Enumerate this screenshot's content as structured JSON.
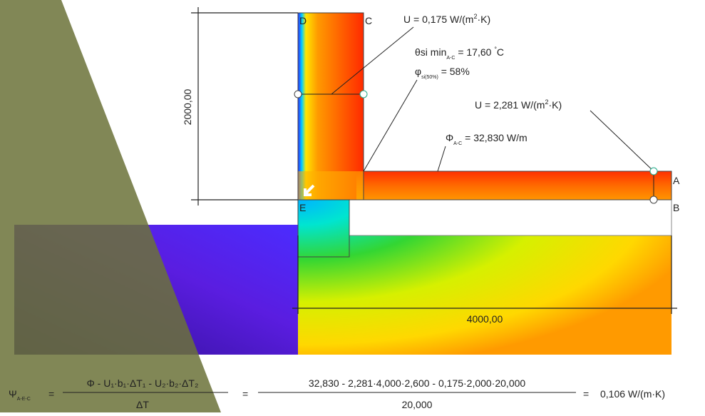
{
  "points": {
    "D": "D",
    "C": "C",
    "A": "A",
    "B": "B",
    "E": "E"
  },
  "dimensions": {
    "height": "2000,00",
    "width": "4000,00"
  },
  "annotations": {
    "u_wall": [
      "U",
      "= 0,175 W/(m",
      "2",
      "·K)"
    ],
    "theta": [
      "θ",
      "si min",
      "A-C",
      "= 17,60 ",
      "°",
      "C"
    ],
    "phi": [
      "φ",
      "si(50%)",
      "= 58%"
    ],
    "u_floor": [
      "U",
      "= 2,281 W/(m",
      "2",
      "·K)"
    ],
    "flux": [
      "Φ",
      "A-C",
      "= 32,830 W/m"
    ]
  },
  "formula": {
    "symbol": "Ψ",
    "symbol_sub": "A-E-C",
    "eq1": "=",
    "numerator": "Φ  -  U₁·b₁·ΔT₁  -  U₂·b₂·ΔT₂",
    "denominator": "ΔT",
    "eq2": "=",
    "numerator2": "32,830  -  2,281·4,000·2,600  -  0,175·2,000·20,000",
    "denominator2": "20,000",
    "eq3": "=",
    "result": "0,106 W/(m·K)"
  }
}
